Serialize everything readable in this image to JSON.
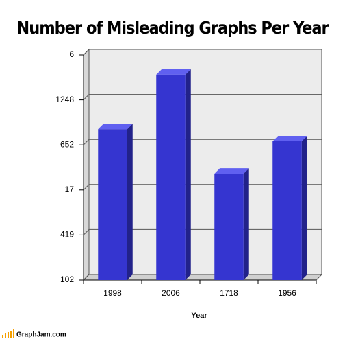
{
  "chart_data": {
    "type": "bar3d",
    "title": "Number of Misleading Graphs Per Year",
    "x_label": "Year",
    "categories": [
      "1998",
      "2006",
      "1718",
      "1956"
    ],
    "values": [
      3.35,
      4.56,
      2.36,
      3.08
    ],
    "color": "#3535d0",
    "ylim": [
      0,
      5
    ],
    "yticks": [
      {
        "value": 0,
        "label": "102"
      },
      {
        "value": 1,
        "label": "419"
      },
      {
        "value": 2,
        "label": "17"
      },
      {
        "value": 3,
        "label": "652"
      },
      {
        "value": 4,
        "label": "1248"
      },
      {
        "value": 5,
        "label": "6"
      }
    ],
    "grid": true
  },
  "footer": {
    "brand": "GraphJam.com"
  }
}
